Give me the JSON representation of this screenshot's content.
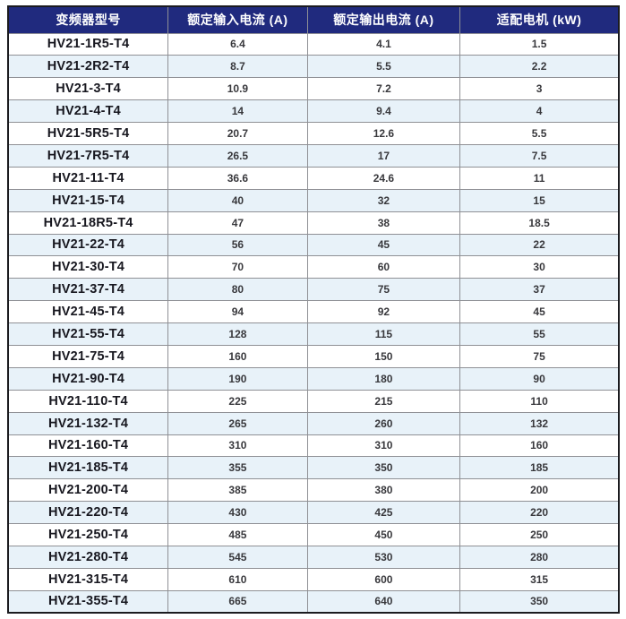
{
  "table": {
    "title_semantic": "inverter-specification-table",
    "columns": [
      "变频器型号",
      "额定输入电流 (A)",
      "额定输出电流 (A)",
      "适配电机 (kW)"
    ],
    "rows": [
      [
        "HV21-1R5-T4",
        "6.4",
        "4.1",
        "1.5"
      ],
      [
        "HV21-2R2-T4",
        "8.7",
        "5.5",
        "2.2"
      ],
      [
        "HV21-3-T4",
        "10.9",
        "7.2",
        "3"
      ],
      [
        "HV21-4-T4",
        "14",
        "9.4",
        "4"
      ],
      [
        "HV21-5R5-T4",
        "20.7",
        "12.6",
        "5.5"
      ],
      [
        "HV21-7R5-T4",
        "26.5",
        "17",
        "7.5"
      ],
      [
        "HV21-11-T4",
        "36.6",
        "24.6",
        "11"
      ],
      [
        "HV21-15-T4",
        "40",
        "32",
        "15"
      ],
      [
        "HV21-18R5-T4",
        "47",
        "38",
        "18.5"
      ],
      [
        "HV21-22-T4",
        "56",
        "45",
        "22"
      ],
      [
        "HV21-30-T4",
        "70",
        "60",
        "30"
      ],
      [
        "HV21-37-T4",
        "80",
        "75",
        "37"
      ],
      [
        "HV21-45-T4",
        "94",
        "92",
        "45"
      ],
      [
        "HV21-55-T4",
        "128",
        "115",
        "55"
      ],
      [
        "HV21-75-T4",
        "160",
        "150",
        "75"
      ],
      [
        "HV21-90-T4",
        "190",
        "180",
        "90"
      ],
      [
        "HV21-110-T4",
        "225",
        "215",
        "110"
      ],
      [
        "HV21-132-T4",
        "265",
        "260",
        "132"
      ],
      [
        "HV21-160-T4",
        "310",
        "310",
        "160"
      ],
      [
        "HV21-185-T4",
        "355",
        "350",
        "185"
      ],
      [
        "HV21-200-T4",
        "385",
        "380",
        "200"
      ],
      [
        "HV21-220-T4",
        "430",
        "425",
        "220"
      ],
      [
        "HV21-250-T4",
        "485",
        "450",
        "250"
      ],
      [
        "HV21-280-T4",
        "545",
        "530",
        "280"
      ],
      [
        "HV21-315-T4",
        "610",
        "600",
        "315"
      ],
      [
        "HV21-355-T4",
        "665",
        "640",
        "350"
      ]
    ]
  },
  "colors": {
    "header_bg": "#202a7e",
    "header_text": "#ffffff",
    "stripe_bg": "#e8f2f9",
    "row_bg": "#ffffff",
    "border_outer": "#1b1b1f",
    "grid_line": "#8f9095",
    "model_text": "#17171f",
    "value_text": "#38383c"
  }
}
